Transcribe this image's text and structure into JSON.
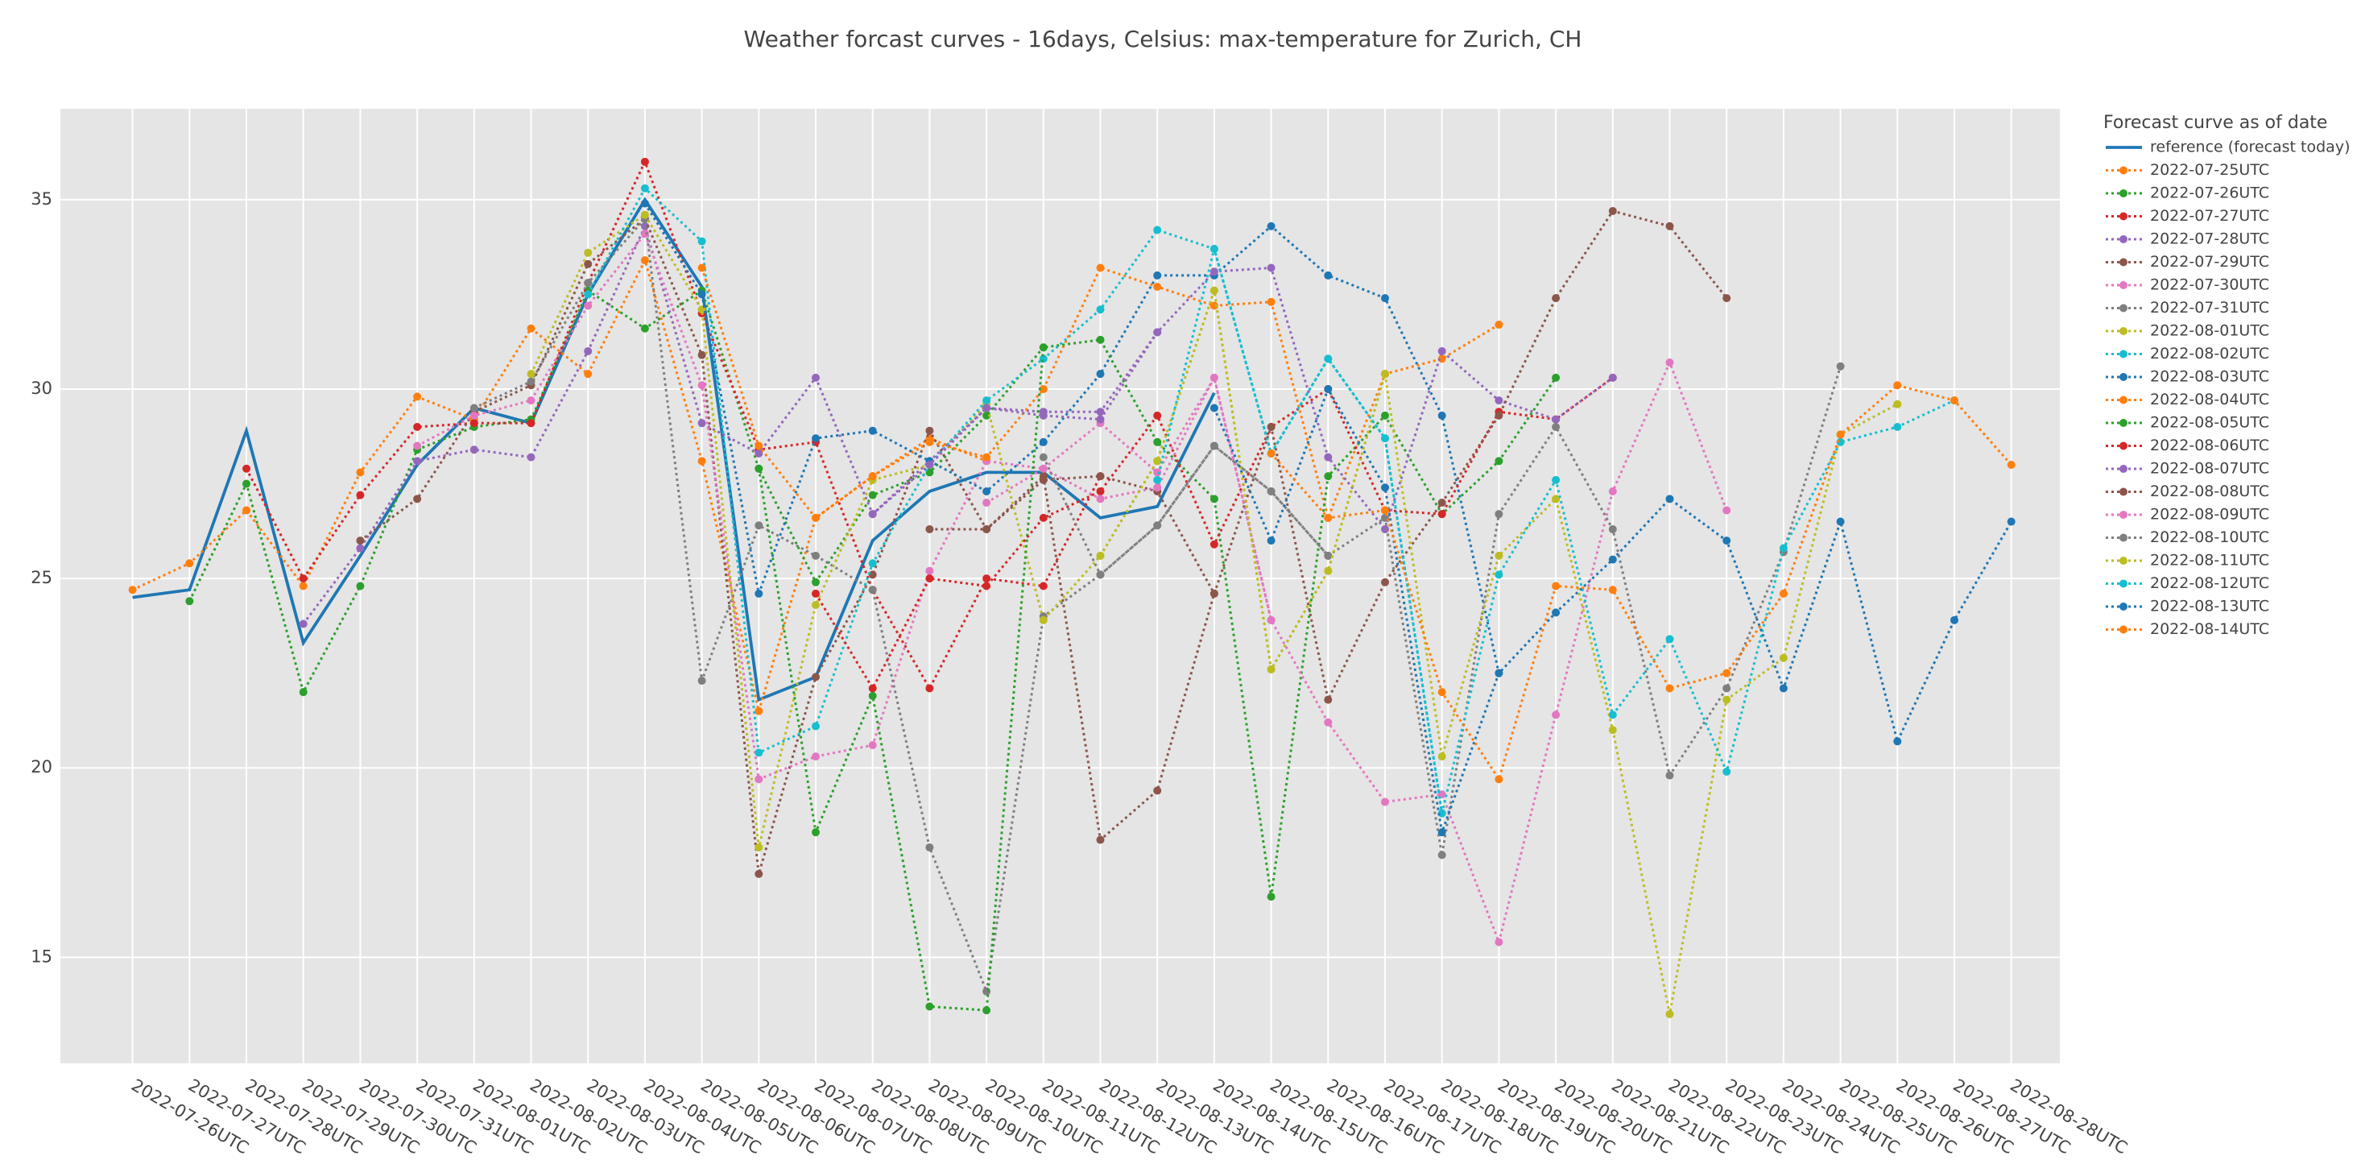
{
  "chart_data": {
    "type": "line",
    "title": "Weather forcast curves - 16days, Celsius: max-temperature for Zurich, CH",
    "legend_title": "Forecast curve as of date",
    "legend_position": "right",
    "grid": true,
    "categories": [
      "2022-07-26UTC",
      "2022-07-27UTC",
      "2022-07-28UTC",
      "2022-07-29UTC",
      "2022-07-30UTC",
      "2022-07-31UTC",
      "2022-08-01UTC",
      "2022-08-02UTC",
      "2022-08-03UTC",
      "2022-08-04UTC",
      "2022-08-05UTC",
      "2022-08-06UTC",
      "2022-08-07UTC",
      "2022-08-08UTC",
      "2022-08-09UTC",
      "2022-08-10UTC",
      "2022-08-11UTC",
      "2022-08-12UTC",
      "2022-08-13UTC",
      "2022-08-14UTC",
      "2022-08-15UTC",
      "2022-08-16UTC",
      "2022-08-17UTC",
      "2022-08-18UTC",
      "2022-08-19UTC",
      "2022-08-20UTC",
      "2022-08-21UTC",
      "2022-08-22UTC",
      "2022-08-23UTC",
      "2022-08-24UTC",
      "2022-08-25UTC",
      "2022-08-26UTC",
      "2022-08-27UTC",
      "2022-08-28UTC"
    ],
    "ylim": [
      12.2,
      37.4
    ],
    "yticks": [
      15,
      20,
      25,
      30,
      35
    ],
    "series": [
      {
        "name": "reference (forecast today)",
        "color": "#1f77b4",
        "style": "solid",
        "values": [
          24.5,
          24.7,
          28.9,
          23.3,
          25.6,
          28.0,
          29.5,
          29.1,
          32.5,
          35.0,
          32.7,
          21.8,
          22.4,
          26.0,
          27.3,
          27.8,
          27.8,
          26.6,
          26.9,
          29.9,
          null,
          null,
          null,
          null,
          null,
          null,
          null,
          null,
          null,
          null,
          null,
          null,
          null,
          null
        ]
      },
      {
        "name": "2022-07-25UTC",
        "color": "#ff7f0e",
        "style": "dotted",
        "values": [
          24.7,
          25.4,
          26.8,
          24.8,
          27.8,
          29.8,
          29.2,
          31.6,
          30.4,
          33.4,
          28.1,
          21.5,
          26.6,
          27.7,
          28.7,
          28.1,
          null,
          null,
          null,
          null,
          null,
          null,
          null,
          null,
          null,
          null,
          null,
          null,
          null,
          null,
          null,
          null,
          null,
          null
        ]
      },
      {
        "name": "2022-07-26UTC",
        "color": "#2ca02c",
        "style": "dotted",
        "values": [
          null,
          24.4,
          27.5,
          22.0,
          24.8,
          28.4,
          29.0,
          29.2,
          32.6,
          31.6,
          32.6,
          27.9,
          24.9,
          27.2,
          27.8,
          29.3,
          31.1,
          null,
          null,
          null,
          null,
          null,
          null,
          null,
          null,
          null,
          null,
          null,
          null,
          null,
          null,
          null,
          null,
          null
        ]
      },
      {
        "name": "2022-07-27UTC",
        "color": "#d62728",
        "style": "dotted",
        "values": [
          null,
          null,
          27.9,
          25.0,
          27.2,
          29.0,
          29.1,
          29.1,
          32.8,
          36.0,
          32.0,
          28.4,
          28.6,
          24.7,
          22.1,
          25.0,
          24.8,
          27.7,
          null,
          null,
          null,
          null,
          null,
          null,
          null,
          null,
          null,
          null,
          null,
          null,
          null,
          null,
          null,
          null
        ]
      },
      {
        "name": "2022-07-28UTC",
        "color": "#9467bd",
        "style": "dotted",
        "values": [
          null,
          null,
          null,
          23.8,
          25.8,
          28.1,
          28.4,
          28.2,
          31.0,
          34.3,
          29.1,
          28.3,
          30.3,
          26.7,
          28.1,
          29.5,
          29.4,
          29.4,
          31.5,
          null,
          null,
          null,
          null,
          null,
          null,
          null,
          null,
          null,
          null,
          null,
          null,
          null,
          null,
          null
        ]
      },
      {
        "name": "2022-07-29UTC",
        "color": "#8c564b",
        "style": "dotted",
        "values": [
          null,
          null,
          null,
          null,
          26.0,
          27.1,
          29.4,
          30.1,
          33.3,
          34.5,
          30.9,
          17.2,
          22.4,
          25.1,
          28.9,
          26.3,
          27.6,
          27.7,
          27.3,
          24.6,
          null,
          null,
          null,
          null,
          null,
          null,
          null,
          null,
          null,
          null,
          null,
          null,
          null,
          null
        ]
      },
      {
        "name": "2022-07-30UTC",
        "color": "#e377c2",
        "style": "dotted",
        "values": [
          null,
          null,
          null,
          null,
          null,
          28.5,
          29.3,
          29.7,
          32.2,
          34.1,
          30.1,
          19.7,
          20.3,
          20.6,
          25.2,
          28.1,
          27.9,
          29.1,
          27.8,
          30.3,
          23.9,
          null,
          null,
          null,
          null,
          null,
          null,
          null,
          null,
          null,
          null,
          null,
          null,
          null
        ]
      },
      {
        "name": "2022-07-31UTC",
        "color": "#7f7f7f",
        "style": "dotted",
        "values": [
          null,
          null,
          null,
          null,
          null,
          null,
          29.5,
          30.2,
          32.8,
          34.5,
          22.3,
          26.4,
          25.6,
          24.7,
          17.9,
          14.1,
          24.0,
          25.1,
          26.4,
          28.5,
          27.3,
          25.6,
          null,
          null,
          null,
          null,
          null,
          null,
          null,
          null,
          null,
          null,
          null,
          null
        ]
      },
      {
        "name": "2022-08-01UTC",
        "color": "#bcbd22",
        "style": "dotted",
        "values": [
          null,
          null,
          null,
          null,
          null,
          null,
          null,
          30.4,
          33.6,
          34.6,
          32.1,
          17.9,
          24.3,
          27.6,
          28.0,
          29.6,
          23.9,
          25.6,
          28.1,
          32.6,
          22.6,
          25.2,
          30.4,
          null,
          null,
          null,
          null,
          null,
          null,
          null,
          null,
          null,
          null,
          null
        ]
      },
      {
        "name": "2022-08-02UTC",
        "color": "#17becf",
        "style": "dotted",
        "values": [
          null,
          null,
          null,
          null,
          null,
          null,
          null,
          null,
          32.5,
          35.3,
          33.9,
          20.4,
          21.1,
          25.4,
          28.0,
          29.7,
          30.8,
          32.1,
          34.2,
          33.7,
          28.3,
          30.8,
          28.7,
          18.8,
          null,
          null,
          null,
          null,
          null,
          null,
          null,
          null,
          null,
          null
        ]
      },
      {
        "name": "2022-08-03UTC",
        "color": "#1f77b4",
        "style": "dotted",
        "values": [
          null,
          null,
          null,
          null,
          null,
          null,
          null,
          null,
          null,
          34.9,
          32.5,
          24.6,
          28.7,
          28.9,
          28.1,
          27.3,
          28.6,
          30.4,
          33.0,
          33.0,
          34.3,
          33.0,
          32.4,
          29.3,
          22.5,
          null,
          null,
          null,
          null,
          null,
          null,
          null,
          null,
          null
        ]
      },
      {
        "name": "2022-08-04UTC",
        "color": "#ff7f0e",
        "style": "dotted",
        "values": [
          null,
          null,
          null,
          null,
          null,
          null,
          null,
          null,
          null,
          null,
          33.2,
          28.5,
          26.6,
          27.7,
          28.6,
          28.2,
          30.0,
          33.2,
          32.7,
          32.2,
          32.3,
          26.6,
          30.4,
          30.8,
          31.7,
          null,
          null,
          null,
          null,
          null,
          null,
          null,
          null,
          null
        ]
      },
      {
        "name": "2022-08-05UTC",
        "color": "#2ca02c",
        "style": "dotted",
        "values": [
          null,
          null,
          null,
          null,
          null,
          null,
          null,
          null,
          null,
          null,
          null,
          27.9,
          18.3,
          21.9,
          13.7,
          13.6,
          31.1,
          31.3,
          28.6,
          27.1,
          16.6,
          27.7,
          29.3,
          26.7,
          28.1,
          30.3,
          null,
          null,
          null,
          null,
          null,
          null,
          null,
          null
        ]
      },
      {
        "name": "2022-08-06UTC",
        "color": "#d62728",
        "style": "dotted",
        "values": [
          null,
          null,
          null,
          null,
          null,
          null,
          null,
          null,
          null,
          null,
          null,
          null,
          24.6,
          22.1,
          25.0,
          24.8,
          26.6,
          27.3,
          29.3,
          25.9,
          29.0,
          30.0,
          26.8,
          26.7,
          29.4,
          29.2,
          30.3,
          null,
          null,
          null,
          null,
          null,
          null,
          null
        ]
      },
      {
        "name": "2022-08-07UTC",
        "color": "#9467bd",
        "style": "dotted",
        "values": [
          null,
          null,
          null,
          null,
          null,
          null,
          null,
          null,
          null,
          null,
          null,
          null,
          null,
          26.7,
          28.0,
          29.5,
          29.3,
          29.2,
          31.5,
          33.1,
          33.2,
          28.2,
          26.3,
          31.0,
          29.7,
          29.2,
          30.3,
          null,
          null,
          null,
          null,
          null,
          null,
          null
        ]
      },
      {
        "name": "2022-08-08UTC",
        "color": "#8c564b",
        "style": "dotted",
        "values": [
          null,
          null,
          null,
          null,
          null,
          null,
          null,
          null,
          null,
          null,
          null,
          null,
          null,
          null,
          26.3,
          26.3,
          27.7,
          18.1,
          19.4,
          24.6,
          29.0,
          21.8,
          24.9,
          27.0,
          29.3,
          32.4,
          34.7,
          34.3,
          32.4,
          null,
          null,
          null,
          null,
          null
        ]
      },
      {
        "name": "2022-08-09UTC",
        "color": "#e377c2",
        "style": "dotted",
        "values": [
          null,
          null,
          null,
          null,
          null,
          null,
          null,
          null,
          null,
          null,
          null,
          null,
          null,
          null,
          null,
          27.0,
          27.9,
          27.1,
          27.4,
          30.3,
          23.9,
          21.2,
          19.1,
          19.3,
          15.4,
          21.4,
          27.3,
          30.7,
          26.8,
          null,
          null,
          null,
          null,
          null
        ]
      },
      {
        "name": "2022-08-10UTC",
        "color": "#7f7f7f",
        "style": "dotted",
        "values": [
          null,
          null,
          null,
          null,
          null,
          null,
          null,
          null,
          null,
          null,
          null,
          null,
          null,
          null,
          null,
          null,
          28.2,
          25.1,
          26.4,
          28.5,
          27.3,
          25.6,
          26.6,
          17.7,
          26.7,
          29.0,
          26.3,
          19.8,
          22.1,
          25.7,
          30.6,
          null,
          null,
          null
        ]
      },
      {
        "name": "2022-08-11UTC",
        "color": "#bcbd22",
        "style": "dotted",
        "values": [
          null,
          null,
          null,
          null,
          null,
          null,
          null,
          null,
          null,
          null,
          null,
          null,
          null,
          null,
          null,
          null,
          null,
          25.6,
          28.1,
          32.6,
          22.6,
          25.2,
          30.4,
          20.3,
          25.6,
          27.1,
          21.0,
          13.5,
          21.8,
          22.9,
          28.8,
          29.6,
          null,
          null
        ]
      },
      {
        "name": "2022-08-12UTC",
        "color": "#17becf",
        "style": "dotted",
        "values": [
          null,
          null,
          null,
          null,
          null,
          null,
          null,
          null,
          null,
          null,
          null,
          null,
          null,
          null,
          null,
          null,
          null,
          null,
          27.6,
          33.7,
          28.3,
          30.8,
          28.7,
          18.8,
          25.1,
          27.6,
          21.4,
          23.4,
          19.9,
          25.8,
          28.6,
          29.0,
          29.7,
          null
        ]
      },
      {
        "name": "2022-08-13UTC",
        "color": "#1f77b4",
        "style": "dotted",
        "values": [
          null,
          null,
          null,
          null,
          null,
          null,
          null,
          null,
          null,
          null,
          null,
          null,
          null,
          null,
          null,
          null,
          null,
          null,
          null,
          29.5,
          26.0,
          30.0,
          27.4,
          18.3,
          22.5,
          24.1,
          25.5,
          27.1,
          26.0,
          22.1,
          26.5,
          20.7,
          23.9,
          26.5
        ]
      },
      {
        "name": "2022-08-14UTC",
        "color": "#ff7f0e",
        "style": "dotted",
        "values": [
          null,
          null,
          null,
          null,
          null,
          null,
          null,
          null,
          null,
          null,
          null,
          null,
          null,
          null,
          null,
          null,
          null,
          null,
          null,
          null,
          28.3,
          26.6,
          26.8,
          22.0,
          19.7,
          24.8,
          24.7,
          22.1,
          22.5,
          24.6,
          28.8,
          30.1,
          29.7,
          28.0
        ]
      }
    ]
  }
}
